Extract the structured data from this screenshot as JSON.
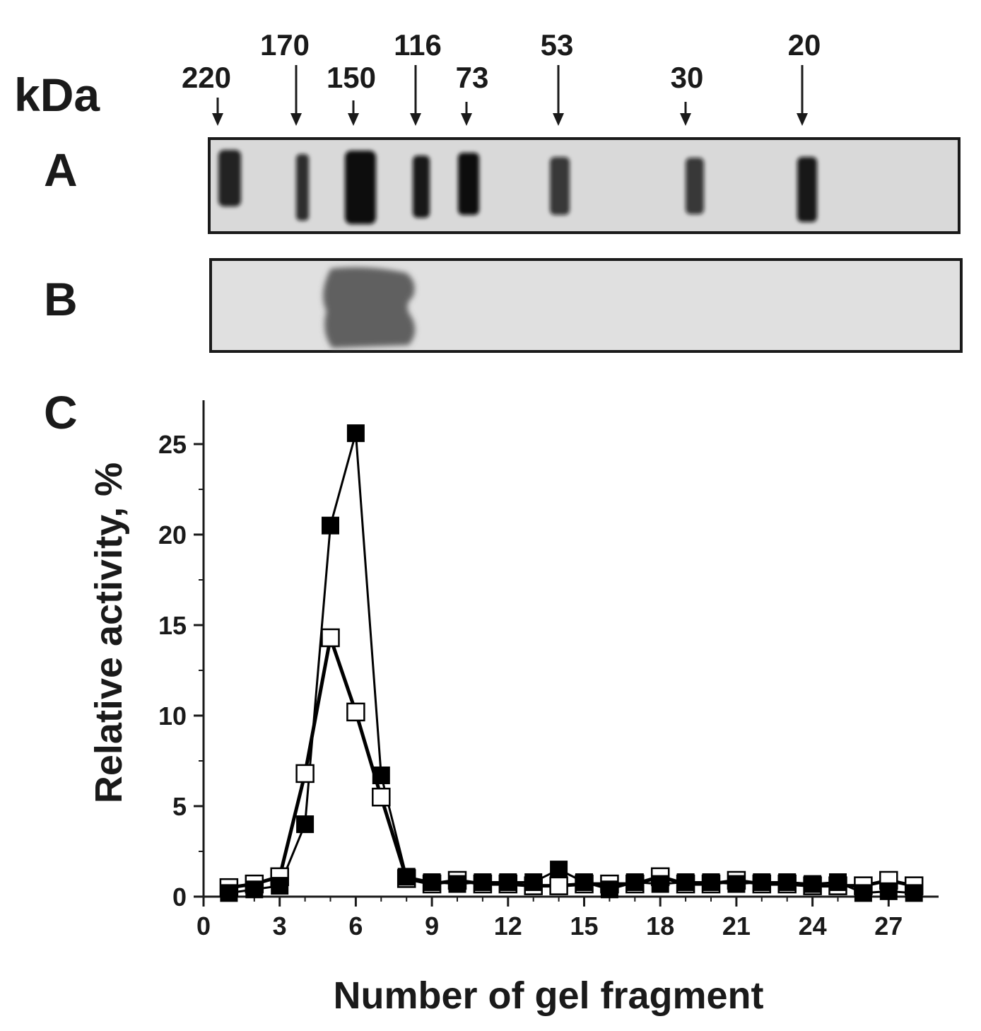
{
  "gel": {
    "unit_label": "kDa",
    "panel_a_label": "A",
    "panel_b_label": "B",
    "markers": [
      {
        "kda": "220",
        "row": "low"
      },
      {
        "kda": "170",
        "row": "high"
      },
      {
        "kda": "150",
        "row": "low"
      },
      {
        "kda": "116",
        "row": "high"
      },
      {
        "kda": "73",
        "row": "low"
      },
      {
        "kda": "53",
        "row": "high"
      },
      {
        "kda": "30",
        "row": "low"
      },
      {
        "kda": "20",
        "row": "high"
      }
    ]
  },
  "chart_data": {
    "type": "line",
    "panel_label": "C",
    "xlabel": "Number of gel fragment",
    "ylabel": "Relative activity, %",
    "xlim": [
      0,
      28.5
    ],
    "ylim": [
      0,
      27
    ],
    "xticks": [
      0,
      3,
      6,
      9,
      12,
      15,
      18,
      21,
      24,
      27
    ],
    "yticks": [
      0,
      5,
      10,
      15,
      20,
      25
    ],
    "grid": false,
    "legend": "none",
    "series": [
      {
        "marker": "filled-square",
        "color": "#000000",
        "x": [
          1,
          2,
          3,
          4,
          5,
          6,
          7,
          8,
          9,
          10,
          11,
          12,
          13,
          14,
          15,
          16,
          17,
          18,
          19,
          20,
          21,
          22,
          23,
          24,
          25,
          26,
          27,
          28
        ],
        "y": [
          0.2,
          0.4,
          0.6,
          4.0,
          20.5,
          25.6,
          6.7,
          1.1,
          0.8,
          0.7,
          0.8,
          0.8,
          0.8,
          1.5,
          0.8,
          0.4,
          0.8,
          0.7,
          0.8,
          0.8,
          0.7,
          0.8,
          0.8,
          0.7,
          0.8,
          0.2,
          0.3,
          0.2
        ]
      },
      {
        "marker": "open-square",
        "color": "#000000",
        "x": [
          1,
          2,
          3,
          4,
          5,
          6,
          7,
          8,
          9,
          10,
          11,
          12,
          13,
          14,
          15,
          16,
          17,
          18,
          19,
          20,
          21,
          22,
          23,
          24,
          25,
          26,
          27,
          28
        ],
        "y": [
          0.5,
          0.7,
          1.1,
          6.8,
          14.3,
          10.2,
          5.5,
          1.0,
          0.7,
          0.9,
          0.7,
          0.7,
          0.6,
          0.6,
          0.7,
          0.7,
          0.7,
          1.1,
          0.7,
          0.7,
          0.9,
          0.7,
          0.7,
          0.6,
          0.6,
          0.6,
          0.9,
          0.6
        ]
      }
    ]
  }
}
